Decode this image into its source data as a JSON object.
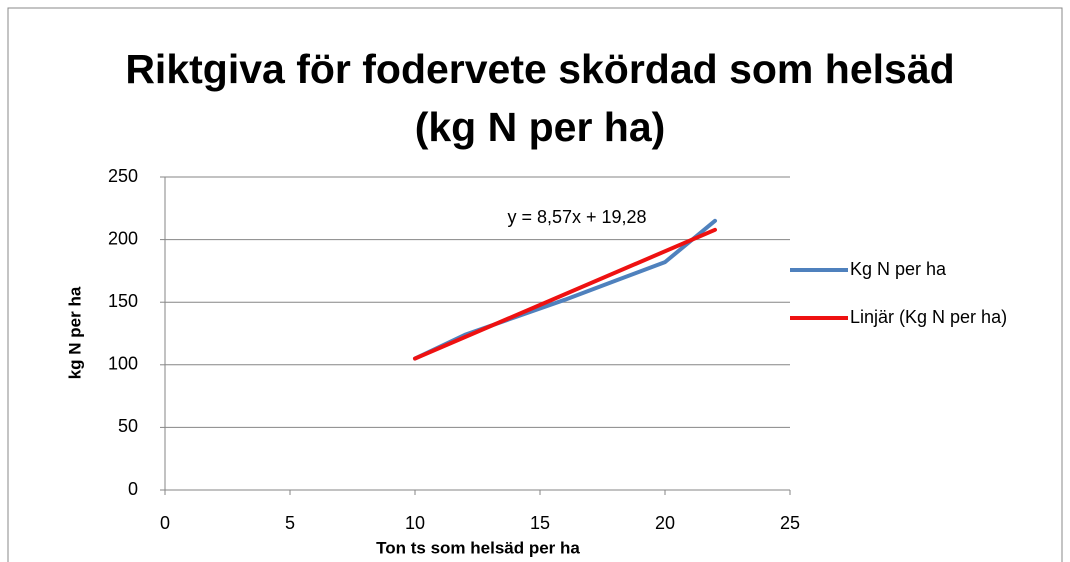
{
  "chart_data": {
    "type": "line",
    "title": "Riktgiva för fodervete skördad som helsäd",
    "subtitle": "(kg N per ha)",
    "x_label": "Ton ts som helsäd per ha",
    "y_label": "kg N per ha",
    "annotation": "y = 8,57x + 19,28",
    "series": [
      {
        "name": "Kg N per ha",
        "color": "#4f81bd",
        "x": [
          10,
          12,
          14,
          16,
          18,
          20,
          22
        ],
        "values": [
          105,
          124,
          138,
          152,
          167,
          182,
          215
        ]
      },
      {
        "name": "Linjär (Kg N per ha)",
        "color": "#ee1111",
        "x": [
          10,
          22
        ],
        "values": [
          104.98,
          207.82
        ]
      }
    ],
    "xlim": [
      0,
      25
    ],
    "xticks": [
      0,
      5,
      10,
      15,
      20,
      25
    ],
    "ylim": [
      0,
      250
    ],
    "yticks": [
      0,
      50,
      100,
      150,
      200,
      250
    ],
    "grid": true,
    "legend": "right"
  }
}
